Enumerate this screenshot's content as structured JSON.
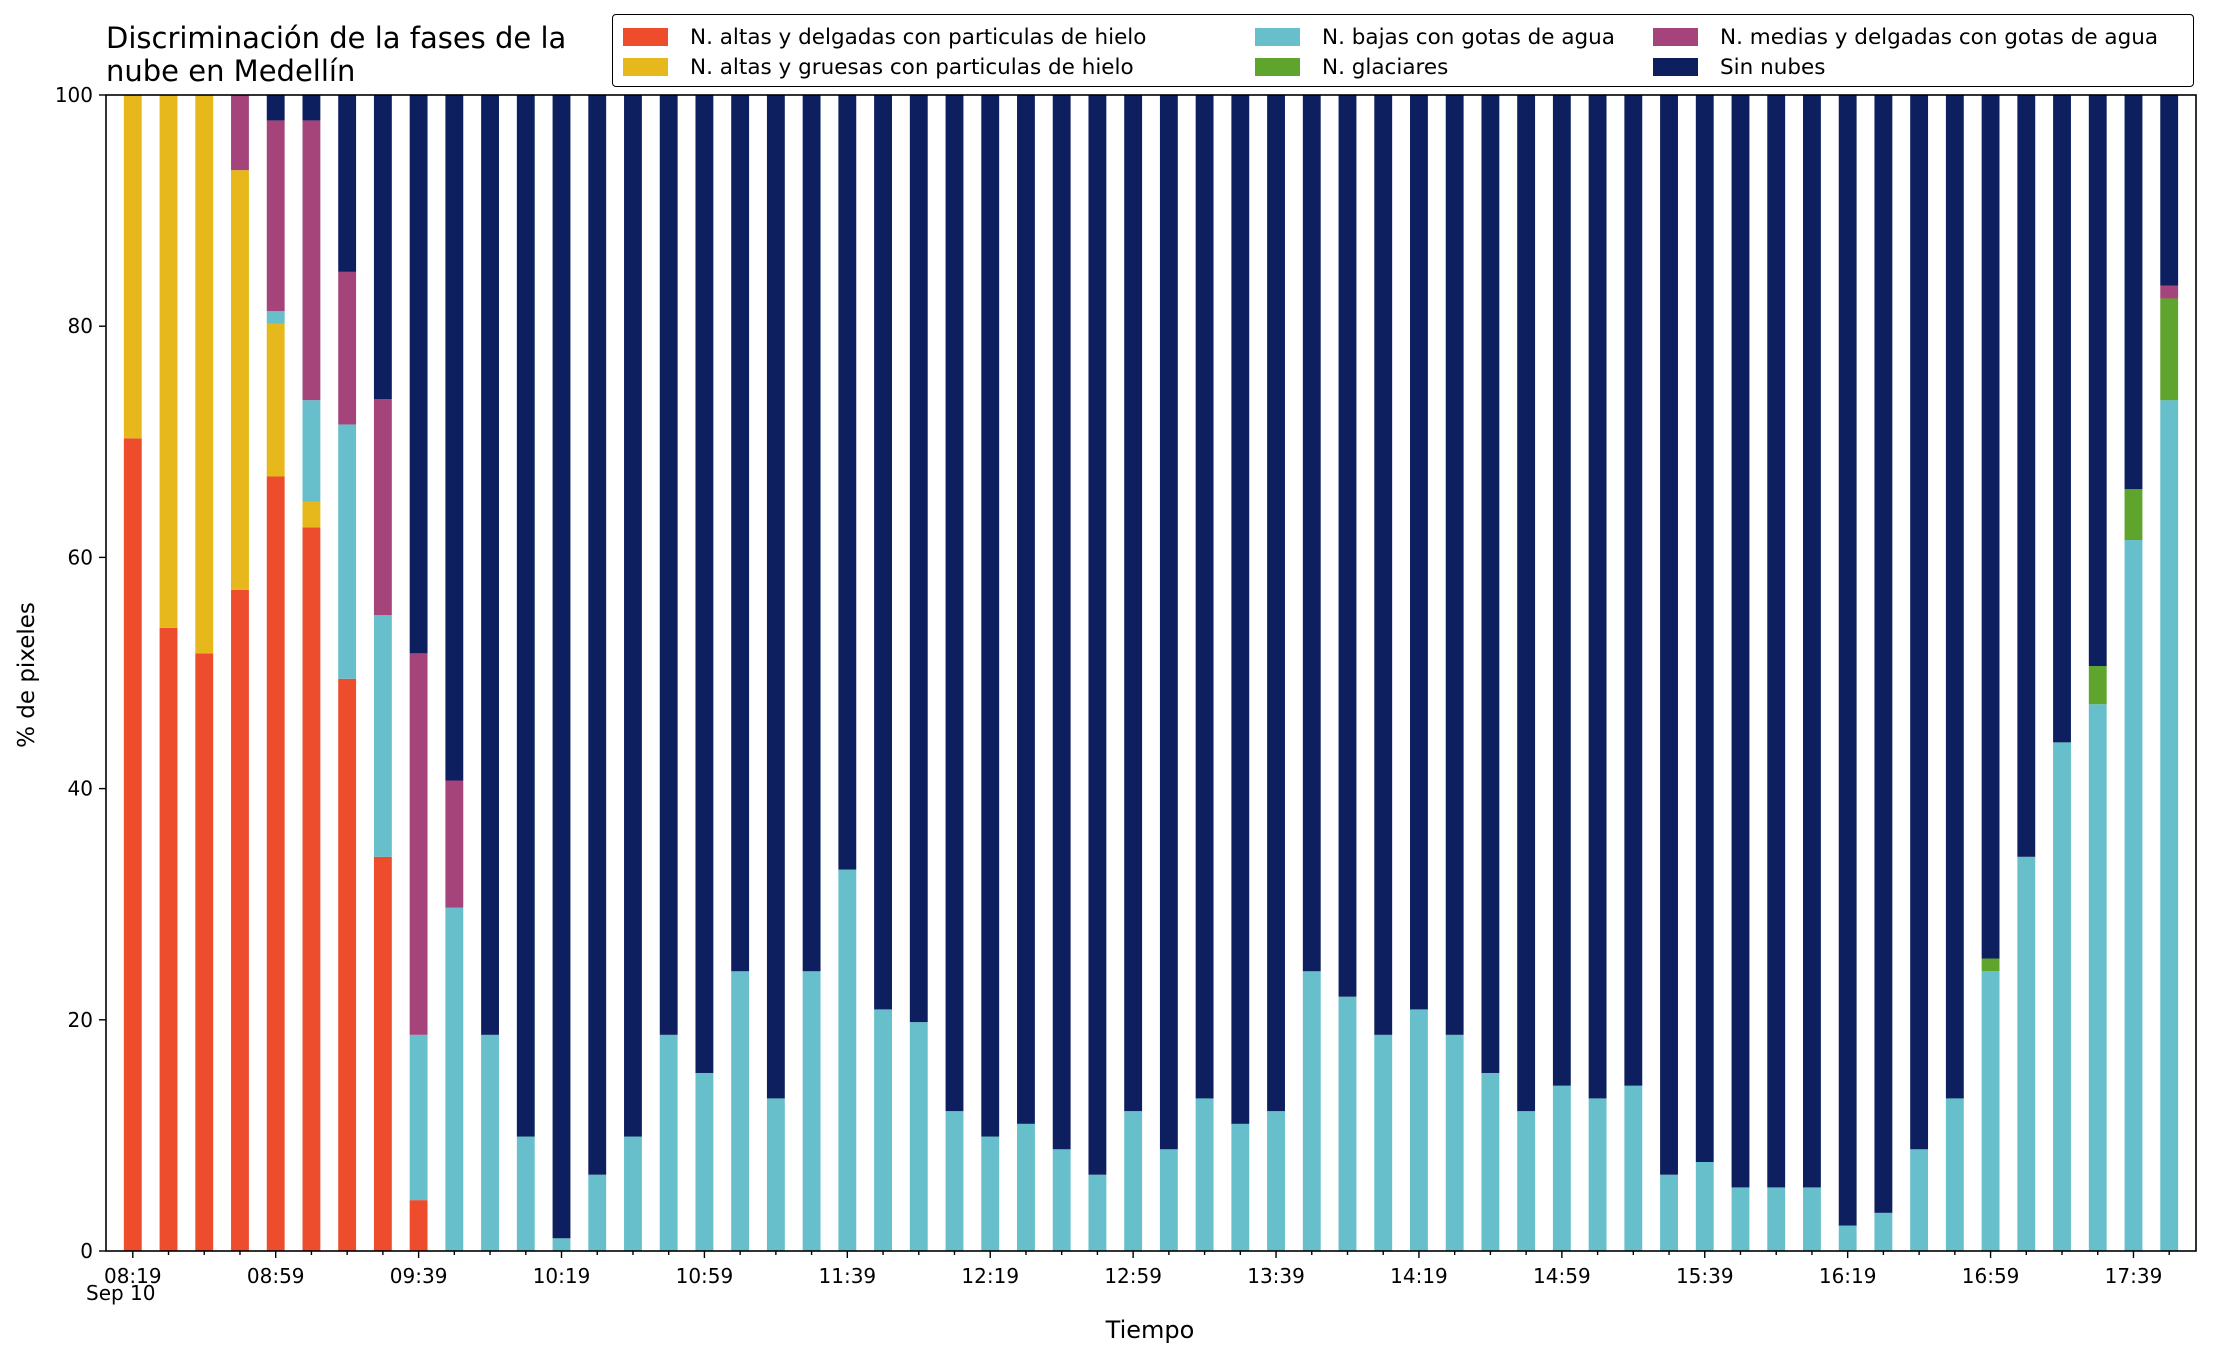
{
  "chart_data": {
    "type": "bar",
    "stacked": true,
    "title_lines": [
      "Discriminación de la fases de la",
      "nube en Medellín"
    ],
    "xlabel": "Tiempo",
    "ylabel": "% de pixeles",
    "ylim": [
      0,
      100
    ],
    "yticks": [
      0,
      20,
      40,
      60,
      80,
      100
    ],
    "x_sublabel": "Sep 10",
    "legend_position": "top-right",
    "categories": [
      "08:19",
      "08:29",
      "08:39",
      "08:49",
      "08:59",
      "09:09",
      "09:19",
      "09:29",
      "09:39",
      "09:49",
      "09:59",
      "10:09",
      "10:19",
      "10:29",
      "10:39",
      "10:49",
      "10:59",
      "11:09",
      "11:19",
      "11:29",
      "11:39",
      "11:49",
      "11:59",
      "12:09",
      "12:19",
      "12:29",
      "12:39",
      "12:49",
      "12:59",
      "13:09",
      "13:19",
      "13:29",
      "13:39",
      "13:49",
      "13:59",
      "14:09",
      "14:19",
      "14:29",
      "14:39",
      "14:49",
      "14:59",
      "15:09",
      "15:19",
      "15:29",
      "15:39",
      "15:49",
      "15:59",
      "16:09",
      "16:19",
      "16:29",
      "16:39",
      "16:49",
      "16:59",
      "17:09",
      "17:19",
      "17:29",
      "17:39",
      "17:49"
    ],
    "xtick_labels": [
      "08:19",
      "08:59",
      "09:39",
      "10:19",
      "10:59",
      "11:39",
      "12:19",
      "12:59",
      "13:39",
      "14:19",
      "14:59",
      "15:39",
      "16:19",
      "16:59",
      "17:39"
    ],
    "series": [
      {
        "name": "N. altas y delgadas con particulas de hielo",
        "color": "#ee4d2d",
        "values": [
          70.3,
          53.9,
          51.7,
          57.2,
          67.0,
          62.6,
          49.5,
          34.1,
          4.4,
          0,
          0,
          0,
          0,
          0,
          0,
          0,
          0,
          0,
          0,
          0,
          0,
          0,
          0,
          0,
          0,
          0,
          0,
          0,
          0,
          0,
          0,
          0,
          0,
          0,
          0,
          0,
          0,
          0,
          0,
          0,
          0,
          0,
          0,
          0,
          0,
          0,
          0,
          0,
          0,
          0,
          0,
          0,
          0,
          0,
          0,
          0,
          0,
          0
        ]
      },
      {
        "name": "N. altas y gruesas con particulas de hielo",
        "color": "#e6b81b",
        "values": [
          29.7,
          46.1,
          48.3,
          36.3,
          13.2,
          2.2,
          0,
          0,
          0,
          0,
          0,
          0,
          0,
          0,
          0,
          0,
          0,
          0,
          0,
          0,
          0,
          0,
          0,
          0,
          0,
          0,
          0,
          0,
          0,
          0,
          0,
          0,
          0,
          0,
          0,
          0,
          0,
          0,
          0,
          0,
          0,
          0,
          0,
          0,
          0,
          0,
          0,
          0,
          0,
          0,
          0,
          0,
          0,
          0,
          0,
          0,
          0,
          0
        ]
      },
      {
        "name": "N. bajas con gotas de agua",
        "color": "#66bfcb",
        "values": [
          0,
          0,
          0,
          0,
          1.1,
          8.8,
          22.0,
          20.9,
          14.3,
          29.7,
          18.7,
          9.9,
          1.1,
          6.6,
          9.9,
          18.7,
          15.4,
          24.2,
          13.2,
          24.2,
          33.0,
          20.9,
          19.8,
          12.1,
          9.9,
          11.0,
          8.8,
          6.6,
          12.1,
          8.8,
          13.2,
          11.0,
          12.1,
          24.2,
          22.0,
          18.7,
          20.9,
          18.7,
          15.4,
          12.1,
          14.3,
          13.2,
          14.3,
          6.6,
          7.7,
          5.5,
          5.5,
          5.5,
          2.2,
          3.3,
          8.8,
          13.2,
          24.2,
          34.1,
          44.0,
          47.3,
          61.5,
          73.6
        ]
      },
      {
        "name": "N. glaciares",
        "color": "#5ea42d",
        "values": [
          0,
          0,
          0,
          0,
          0,
          0,
          0,
          0,
          0,
          0,
          0,
          0,
          0,
          0,
          0,
          0,
          0,
          0,
          0,
          0,
          0,
          0,
          0,
          0,
          0,
          0,
          0,
          0,
          0,
          0,
          0,
          0,
          0,
          0,
          0,
          0,
          0,
          0,
          0,
          0,
          0,
          0,
          0,
          0,
          0,
          0,
          0,
          0,
          0,
          0,
          0,
          0,
          1.1,
          0,
          0,
          3.3,
          4.4,
          8.8
        ]
      },
      {
        "name": "N. medias y delgadas con gotas de agua",
        "color": "#a4447a",
        "values": [
          0,
          0,
          0,
          6.5,
          16.5,
          24.2,
          13.2,
          18.7,
          33.0,
          11.0,
          0,
          0,
          0,
          0,
          0,
          0,
          0,
          0,
          0,
          0,
          0,
          0,
          0,
          0,
          0,
          0,
          0,
          0,
          0,
          0,
          0,
          0,
          0,
          0,
          0,
          0,
          0,
          0,
          0,
          0,
          0,
          0,
          0,
          0,
          0,
          0,
          0,
          0,
          0,
          0,
          0,
          0,
          0,
          0,
          0,
          0,
          0,
          1.1
        ]
      },
      {
        "name": "Sin nubes",
        "color": "#0d1f5e",
        "values": [
          0,
          0,
          0,
          0,
          2.2,
          2.2,
          15.3,
          26.3,
          48.3,
          59.3,
          81.3,
          90.1,
          98.9,
          93.4,
          90.1,
          81.3,
          84.6,
          75.8,
          86.8,
          75.8,
          67.0,
          79.1,
          80.2,
          87.9,
          90.1,
          89.0,
          91.2,
          93.4,
          87.9,
          91.2,
          86.8,
          89.0,
          87.9,
          75.8,
          78.0,
          81.3,
          79.1,
          81.3,
          84.6,
          87.9,
          85.7,
          86.8,
          85.7,
          93.4,
          92.3,
          94.5,
          94.5,
          94.5,
          97.8,
          96.7,
          91.2,
          86.8,
          74.7,
          65.9,
          56.0,
          49.4,
          34.1,
          16.5
        ]
      }
    ]
  },
  "legend": {
    "items": [
      {
        "label": "N. altas y delgadas con particulas de hielo",
        "color": "#ee4d2d"
      },
      {
        "label": "N. altas y gruesas con particulas de hielo",
        "color": "#e6b81b"
      },
      {
        "label": "N. bajas con gotas de agua",
        "color": "#66bfcb"
      },
      {
        "label": "N. glaciares",
        "color": "#5ea42d"
      },
      {
        "label": "N. medias y delgadas con gotas de agua",
        "color": "#a4447a"
      },
      {
        "label": "Sin nubes",
        "color": "#0d1f5e"
      }
    ]
  }
}
